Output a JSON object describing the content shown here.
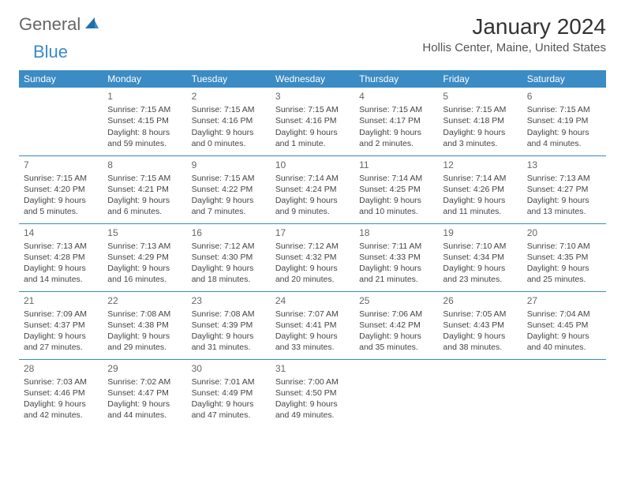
{
  "logo": {
    "part1": "General",
    "part2": "Blue"
  },
  "title": "January 2024",
  "location": "Hollis Center, Maine, United States",
  "colors": {
    "header_bg": "#3b8bc4",
    "header_fg": "#ffffff",
    "rule": "#3b8bc4",
    "text": "#444444",
    "title": "#333333",
    "location": "#555555"
  },
  "weekdays": [
    "Sunday",
    "Monday",
    "Tuesday",
    "Wednesday",
    "Thursday",
    "Friday",
    "Saturday"
  ],
  "weeks": [
    [
      null,
      {
        "n": "1",
        "sr": "Sunrise: 7:15 AM",
        "ss": "Sunset: 4:15 PM",
        "d1": "Daylight: 8 hours",
        "d2": "and 59 minutes."
      },
      {
        "n": "2",
        "sr": "Sunrise: 7:15 AM",
        "ss": "Sunset: 4:16 PM",
        "d1": "Daylight: 9 hours",
        "d2": "and 0 minutes."
      },
      {
        "n": "3",
        "sr": "Sunrise: 7:15 AM",
        "ss": "Sunset: 4:16 PM",
        "d1": "Daylight: 9 hours",
        "d2": "and 1 minute."
      },
      {
        "n": "4",
        "sr": "Sunrise: 7:15 AM",
        "ss": "Sunset: 4:17 PM",
        "d1": "Daylight: 9 hours",
        "d2": "and 2 minutes."
      },
      {
        "n": "5",
        "sr": "Sunrise: 7:15 AM",
        "ss": "Sunset: 4:18 PM",
        "d1": "Daylight: 9 hours",
        "d2": "and 3 minutes."
      },
      {
        "n": "6",
        "sr": "Sunrise: 7:15 AM",
        "ss": "Sunset: 4:19 PM",
        "d1": "Daylight: 9 hours",
        "d2": "and 4 minutes."
      }
    ],
    [
      {
        "n": "7",
        "sr": "Sunrise: 7:15 AM",
        "ss": "Sunset: 4:20 PM",
        "d1": "Daylight: 9 hours",
        "d2": "and 5 minutes."
      },
      {
        "n": "8",
        "sr": "Sunrise: 7:15 AM",
        "ss": "Sunset: 4:21 PM",
        "d1": "Daylight: 9 hours",
        "d2": "and 6 minutes."
      },
      {
        "n": "9",
        "sr": "Sunrise: 7:15 AM",
        "ss": "Sunset: 4:22 PM",
        "d1": "Daylight: 9 hours",
        "d2": "and 7 minutes."
      },
      {
        "n": "10",
        "sr": "Sunrise: 7:14 AM",
        "ss": "Sunset: 4:24 PM",
        "d1": "Daylight: 9 hours",
        "d2": "and 9 minutes."
      },
      {
        "n": "11",
        "sr": "Sunrise: 7:14 AM",
        "ss": "Sunset: 4:25 PM",
        "d1": "Daylight: 9 hours",
        "d2": "and 10 minutes."
      },
      {
        "n": "12",
        "sr": "Sunrise: 7:14 AM",
        "ss": "Sunset: 4:26 PM",
        "d1": "Daylight: 9 hours",
        "d2": "and 11 minutes."
      },
      {
        "n": "13",
        "sr": "Sunrise: 7:13 AM",
        "ss": "Sunset: 4:27 PM",
        "d1": "Daylight: 9 hours",
        "d2": "and 13 minutes."
      }
    ],
    [
      {
        "n": "14",
        "sr": "Sunrise: 7:13 AM",
        "ss": "Sunset: 4:28 PM",
        "d1": "Daylight: 9 hours",
        "d2": "and 14 minutes."
      },
      {
        "n": "15",
        "sr": "Sunrise: 7:13 AM",
        "ss": "Sunset: 4:29 PM",
        "d1": "Daylight: 9 hours",
        "d2": "and 16 minutes."
      },
      {
        "n": "16",
        "sr": "Sunrise: 7:12 AM",
        "ss": "Sunset: 4:30 PM",
        "d1": "Daylight: 9 hours",
        "d2": "and 18 minutes."
      },
      {
        "n": "17",
        "sr": "Sunrise: 7:12 AM",
        "ss": "Sunset: 4:32 PM",
        "d1": "Daylight: 9 hours",
        "d2": "and 20 minutes."
      },
      {
        "n": "18",
        "sr": "Sunrise: 7:11 AM",
        "ss": "Sunset: 4:33 PM",
        "d1": "Daylight: 9 hours",
        "d2": "and 21 minutes."
      },
      {
        "n": "19",
        "sr": "Sunrise: 7:10 AM",
        "ss": "Sunset: 4:34 PM",
        "d1": "Daylight: 9 hours",
        "d2": "and 23 minutes."
      },
      {
        "n": "20",
        "sr": "Sunrise: 7:10 AM",
        "ss": "Sunset: 4:35 PM",
        "d1": "Daylight: 9 hours",
        "d2": "and 25 minutes."
      }
    ],
    [
      {
        "n": "21",
        "sr": "Sunrise: 7:09 AM",
        "ss": "Sunset: 4:37 PM",
        "d1": "Daylight: 9 hours",
        "d2": "and 27 minutes."
      },
      {
        "n": "22",
        "sr": "Sunrise: 7:08 AM",
        "ss": "Sunset: 4:38 PM",
        "d1": "Daylight: 9 hours",
        "d2": "and 29 minutes."
      },
      {
        "n": "23",
        "sr": "Sunrise: 7:08 AM",
        "ss": "Sunset: 4:39 PM",
        "d1": "Daylight: 9 hours",
        "d2": "and 31 minutes."
      },
      {
        "n": "24",
        "sr": "Sunrise: 7:07 AM",
        "ss": "Sunset: 4:41 PM",
        "d1": "Daylight: 9 hours",
        "d2": "and 33 minutes."
      },
      {
        "n": "25",
        "sr": "Sunrise: 7:06 AM",
        "ss": "Sunset: 4:42 PM",
        "d1": "Daylight: 9 hours",
        "d2": "and 35 minutes."
      },
      {
        "n": "26",
        "sr": "Sunrise: 7:05 AM",
        "ss": "Sunset: 4:43 PM",
        "d1": "Daylight: 9 hours",
        "d2": "and 38 minutes."
      },
      {
        "n": "27",
        "sr": "Sunrise: 7:04 AM",
        "ss": "Sunset: 4:45 PM",
        "d1": "Daylight: 9 hours",
        "d2": "and 40 minutes."
      }
    ],
    [
      {
        "n": "28",
        "sr": "Sunrise: 7:03 AM",
        "ss": "Sunset: 4:46 PM",
        "d1": "Daylight: 9 hours",
        "d2": "and 42 minutes."
      },
      {
        "n": "29",
        "sr": "Sunrise: 7:02 AM",
        "ss": "Sunset: 4:47 PM",
        "d1": "Daylight: 9 hours",
        "d2": "and 44 minutes."
      },
      {
        "n": "30",
        "sr": "Sunrise: 7:01 AM",
        "ss": "Sunset: 4:49 PM",
        "d1": "Daylight: 9 hours",
        "d2": "and 47 minutes."
      },
      {
        "n": "31",
        "sr": "Sunrise: 7:00 AM",
        "ss": "Sunset: 4:50 PM",
        "d1": "Daylight: 9 hours",
        "d2": "and 49 minutes."
      },
      null,
      null,
      null
    ]
  ]
}
